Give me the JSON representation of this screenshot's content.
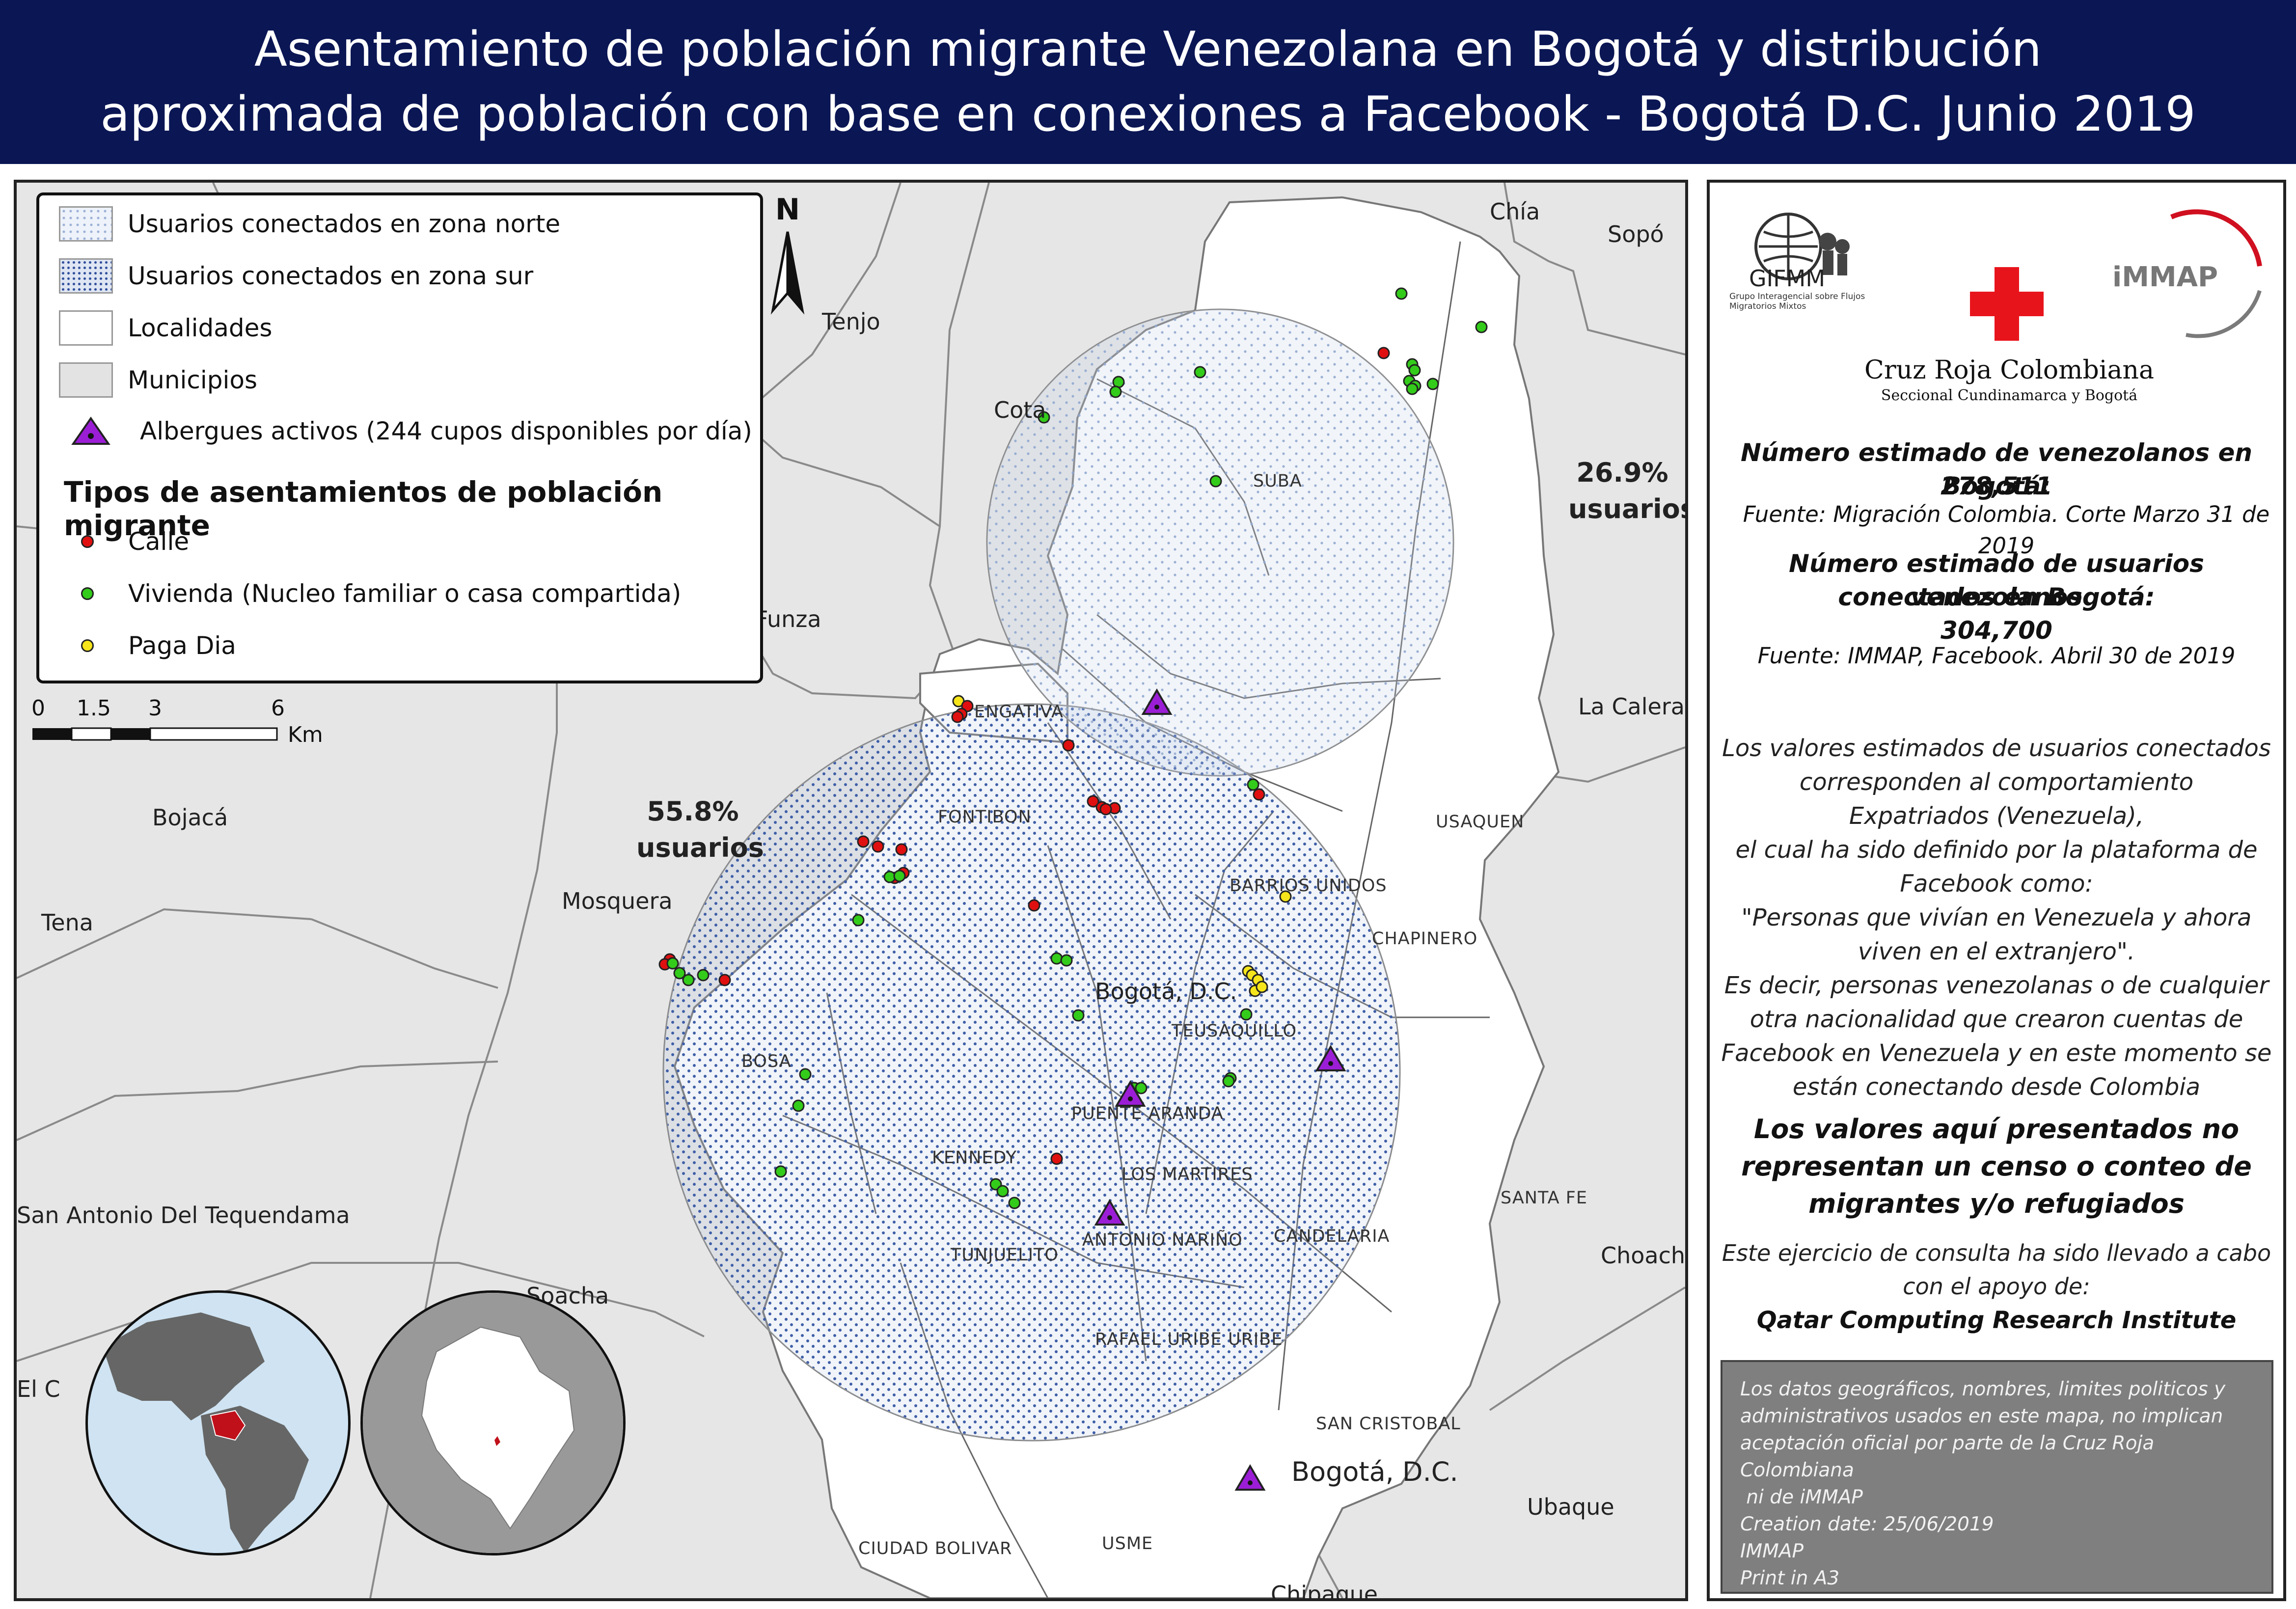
{
  "title": {
    "line1": "Asentamiento de población migrante Venezolana en Bogotá y distribución",
    "line2": "aproximada de población con base en conexiones a Facebook - Bogotá D.C. Junio 2019"
  },
  "legend": {
    "items": [
      {
        "label": "Usuarios conectados en zona norte"
      },
      {
        "label": "Usuarios conectados en zona sur"
      },
      {
        "label": "Localidades"
      },
      {
        "label": "Municipios"
      },
      {
        "label": "Albergues activos (244 cupos disponibles por día)"
      }
    ],
    "section_title": "Tipos de asentamientos de población migrante",
    "types": [
      {
        "label": "Calle",
        "color": "#e01010"
      },
      {
        "label": "Vivienda (Nucleo familiar o casa compartida)",
        "color": "#33cc1a"
      },
      {
        "label": "Paga Dia",
        "color": "#f5e51a"
      }
    ],
    "shelter_color": "#9b1ed6"
  },
  "scale": {
    "ticks": [
      "0",
      "1.5",
      "3",
      "6"
    ],
    "unit": "Km"
  },
  "north_label": "N",
  "zones": {
    "north_pct": "26.9%",
    "north_label": "usuarios",
    "south_pct": "55.8%",
    "south_label": "usuarios"
  },
  "municipalities": [
    "Chía",
    "Sopó",
    "Tenjo",
    "Cota",
    "Funza",
    "La Calera",
    "Bojacá",
    "Mosquera",
    "Tena",
    "San Antonio Del Tequendama",
    "Soacha",
    "El C",
    "Choachí",
    "Ubaque",
    "Chipaque",
    "Bogotá, D.C.",
    "Bogotá, D.C."
  ],
  "localities": [
    "SUBA",
    "ENGATIVA",
    "USAQUEN",
    "FONTIBON",
    "BARRIOS UNIDOS",
    "CHAPINERO",
    "TEUSAQUILLO",
    "BOSA",
    "PUENTE ARANDA",
    "KENNEDY",
    "LOS MARTIRES",
    "SANTA FE",
    "TUNJUELITO",
    "ANTONIO NARIÑO",
    "CANDELARIA",
    "RAFAEL URIBE URIBE",
    "SAN CRISTOBAL",
    "CIUDAD BOLIVAR",
    "USME"
  ],
  "panel": {
    "org1": "GIFMM",
    "org1_sub": "Grupo Interagencial sobre Flujos Migratorios Mixtos",
    "org2": "Cruz Roja Colombiana",
    "org2_sub": "Seccional Cundinamarca y Bogotá",
    "org3": "iMMAP",
    "stat1_label": "Número estimado de venezolanos en Bogotá:",
    "stat1_value": "278,511",
    "stat1_source": "Fuente: Migración Colombia. Corte Marzo 31 de 2019",
    "stat2_label_1": "Número estimado de usuarios venezolanos",
    "stat2_label_2": "conectados en Bogotá:",
    "stat2_value": "304,700",
    "stat2_source": "Fuente: IMMAP, Facebook. Abril 30 de 2019",
    "body": [
      "Los valores estimados de usuarios conectados",
      "corresponden al comportamiento",
      "Expatriados (Venezuela),",
      "el cual ha sido definido por la plataforma de",
      "Facebook como:",
      "\"Personas que vivían en Venezuela y ahora",
      "viven en el extranjero\".",
      "Es decir, personas venezolanas o de cualquier",
      "otra nacionalidad que crearon cuentas de",
      "Facebook en Venezuela y en este momento se",
      "están conectando desde Colombia"
    ],
    "warning": [
      "Los valores aquí presentados no",
      "representan un censo o conteo de",
      "migrantes y/o refugiados"
    ],
    "support": [
      "Este ejercicio de consulta ha sido llevado a cabo",
      "con el apoyo de:"
    ],
    "support_org": "Qatar Computing Research Institute",
    "disclaimer": [
      "Los datos geográficos, nombres, limites politicos y",
      "administrativos usados en este mapa, no implican",
      "aceptación oficial por parte de la Cruz Roja Colombiana",
      " ni de iMMAP",
      "Creation date: 25/06/2019",
      "IMMAP",
      "Print in A3"
    ]
  },
  "settlements": [
    {
      "type": "Calle",
      "color": "#e01010"
    },
    {
      "type": "Vivienda",
      "color": "#33cc1a"
    },
    {
      "type": "Paga Dia",
      "color": "#f5e51a"
    }
  ]
}
